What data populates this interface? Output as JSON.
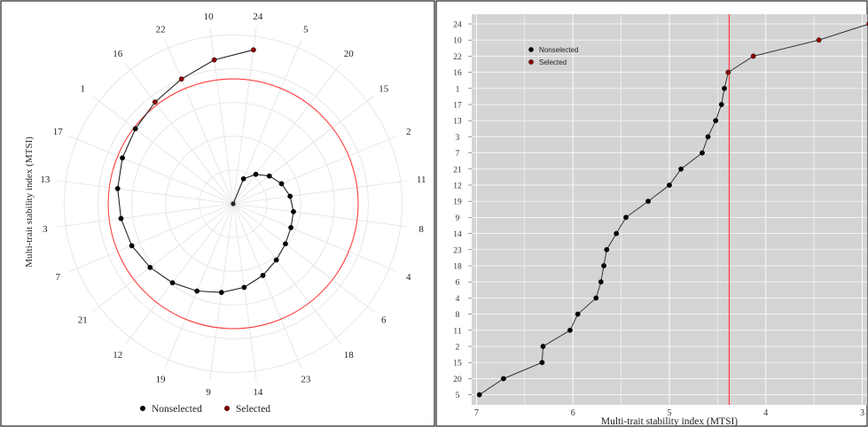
{
  "chart_data": [
    {
      "type": "scatter",
      "subtype": "radar",
      "ylabel": "Multi-trait stability index (MTSI)",
      "categories": [
        "24",
        "5",
        "20",
        "15",
        "2",
        "11",
        "8",
        "4",
        "6",
        "18",
        "23",
        "14",
        "9",
        "19",
        "12",
        "21",
        "7",
        "3",
        "13",
        "17",
        "1",
        "16",
        "22",
        "10"
      ],
      "series": [
        {
          "name": "Nonselected",
          "color": "#000000",
          "points": [
            {
              "genotype": "5",
              "value": 1.6
            },
            {
              "genotype": "20",
              "value": 2.2
            },
            {
              "genotype": "15",
              "value": 2.7
            },
            {
              "genotype": "2",
              "value": 3.1
            },
            {
              "genotype": "11",
              "value": 3.4
            },
            {
              "genotype": "8",
              "value": 3.6
            },
            {
              "genotype": "4",
              "value": 3.7
            },
            {
              "genotype": "6",
              "value": 3.9
            },
            {
              "genotype": "18",
              "value": 4.2
            },
            {
              "genotype": "23",
              "value": 4.6
            },
            {
              "genotype": "14",
              "value": 5.0
            },
            {
              "genotype": "9",
              "value": 5.3
            },
            {
              "genotype": "19",
              "value": 5.6
            },
            {
              "genotype": "12",
              "value": 5.9
            },
            {
              "genotype": "21",
              "value": 6.2
            },
            {
              "genotype": "7",
              "value": 6.5
            },
            {
              "genotype": "3",
              "value": 6.7
            },
            {
              "genotype": "13",
              "value": 6.9
            },
            {
              "genotype": "17",
              "value": 7.1
            },
            {
              "genotype": "1",
              "value": 7.3
            }
          ]
        },
        {
          "name": "Selected",
          "color": "#8b0000",
          "points": [
            {
              "genotype": "16",
              "value": 7.6
            },
            {
              "genotype": "22",
              "value": 8.0
            },
            {
              "genotype": "10",
              "value": 8.6
            },
            {
              "genotype": "24",
              "value": 9.2
            }
          ]
        }
      ],
      "cutoff": {
        "value": 7.4,
        "color": "#ff4040"
      },
      "rlim": [
        0,
        10.5
      ],
      "grid": true,
      "legend": "bottom"
    },
    {
      "type": "scatter",
      "xlabel": "Multi-trait stability index (MTSI)",
      "ylabel": "",
      "xlim": [
        7.05,
        2.95
      ],
      "x_reversed": true,
      "xticks": [
        7,
        6,
        5,
        4,
        3
      ],
      "categories": [
        "24",
        "10",
        "22",
        "16",
        "1",
        "17",
        "13",
        "3",
        "7",
        "21",
        "12",
        "19",
        "9",
        "14",
        "23",
        "18",
        "6",
        "4",
        "8",
        "11",
        "2",
        "15",
        "20",
        "5"
      ],
      "series": [
        {
          "name": "Nonselected",
          "color": "#000000",
          "points": [
            {
              "genotype": "1",
              "value": 4.43
            },
            {
              "genotype": "17",
              "value": 4.46
            },
            {
              "genotype": "13",
              "value": 4.52
            },
            {
              "genotype": "3",
              "value": 4.6
            },
            {
              "genotype": "7",
              "value": 4.66
            },
            {
              "genotype": "21",
              "value": 4.88
            },
            {
              "genotype": "12",
              "value": 5.0
            },
            {
              "genotype": "19",
              "value": 5.22
            },
            {
              "genotype": "9",
              "value": 5.45
            },
            {
              "genotype": "14",
              "value": 5.55
            },
            {
              "genotype": "23",
              "value": 5.65
            },
            {
              "genotype": "18",
              "value": 5.68
            },
            {
              "genotype": "6",
              "value": 5.71
            },
            {
              "genotype": "4",
              "value": 5.76
            },
            {
              "genotype": "8",
              "value": 5.95
            },
            {
              "genotype": "11",
              "value": 6.03
            },
            {
              "genotype": "2",
              "value": 6.31
            },
            {
              "genotype": "15",
              "value": 6.32
            },
            {
              "genotype": "20",
              "value": 6.72
            },
            {
              "genotype": "5",
              "value": 6.97
            }
          ]
        },
        {
          "name": "Selected",
          "color": "#8b0000",
          "points": [
            {
              "genotype": "24",
              "value": 2.93
            },
            {
              "genotype": "10",
              "value": 3.45
            },
            {
              "genotype": "22",
              "value": 4.13
            },
            {
              "genotype": "16",
              "value": 4.39
            }
          ]
        }
      ],
      "cutoff": {
        "value": 4.38,
        "color": "#ff4040"
      },
      "grid": true,
      "background": "#d4d4d4",
      "legend": "top-left"
    }
  ]
}
